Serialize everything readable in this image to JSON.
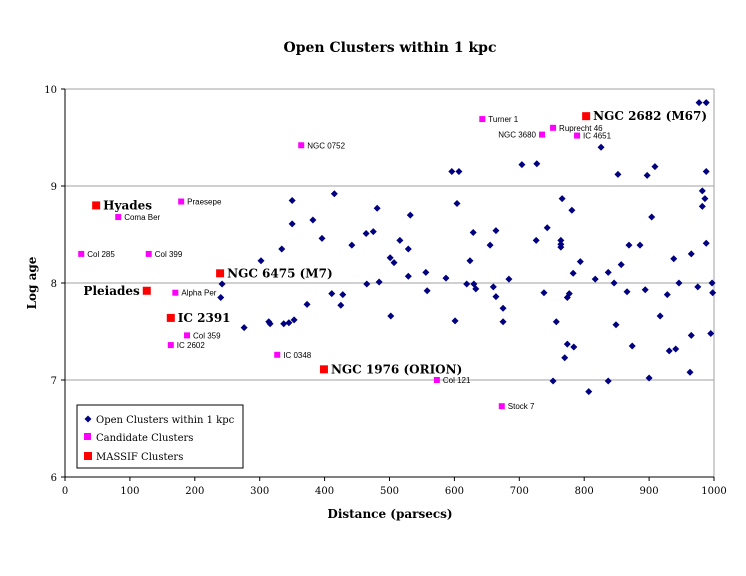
{
  "chart_data": {
    "type": "scatter",
    "title": "Open Clusters within 1 kpc",
    "xlabel": "Distance (parsecs)",
    "ylabel": "Log age",
    "xlim": [
      0,
      1000
    ],
    "ylim": [
      6,
      10
    ],
    "xticks": [
      "0",
      "100",
      "200",
      "300",
      "400",
      "500",
      "600",
      "700",
      "800",
      "900",
      "1000"
    ],
    "yticks": [
      "6",
      "7",
      "8",
      "9",
      "10"
    ],
    "grid": "horizontal",
    "legend_position": "bottom-left",
    "colors": {
      "open": "#000080",
      "candidate": "#ff00ff",
      "massif": "#ff0000",
      "grid": "#a0a0a0"
    },
    "series": [
      {
        "name": "Open Clusters within 1 kpc",
        "marker": "diamond",
        "points": [
          [
            350,
            8.85
          ],
          [
            415,
            8.92
          ],
          [
            481,
            8.77
          ],
          [
            350,
            8.61
          ],
          [
            382,
            8.65
          ],
          [
            396,
            8.46
          ],
          [
            442,
            8.39
          ],
          [
            464,
            8.51
          ],
          [
            475,
            8.53
          ],
          [
            334,
            8.35
          ],
          [
            302,
            8.23
          ],
          [
            501,
            8.26
          ],
          [
            507,
            8.21
          ],
          [
            242,
            7.99
          ],
          [
            240,
            7.85
          ],
          [
            465,
            7.99
          ],
          [
            484,
            8.01
          ],
          [
            411,
            7.89
          ],
          [
            428,
            7.88
          ],
          [
            425,
            7.77
          ],
          [
            373,
            7.78
          ],
          [
            502,
            7.66
          ],
          [
            276,
            7.54
          ],
          [
            314,
            7.6
          ],
          [
            316,
            7.58
          ],
          [
            337,
            7.58
          ],
          [
            345,
            7.59
          ],
          [
            353,
            7.62
          ],
          [
            604,
            8.82
          ],
          [
            532,
            8.7
          ],
          [
            516,
            8.44
          ],
          [
            529,
            8.35
          ],
          [
            629,
            8.52
          ],
          [
            664,
            8.54
          ],
          [
            655,
            8.39
          ],
          [
            624,
            8.23
          ],
          [
            556,
            8.11
          ],
          [
            529,
            8.07
          ],
          [
            587,
            8.05
          ],
          [
            619,
            7.99
          ],
          [
            630,
            7.99
          ],
          [
            633,
            7.94
          ],
          [
            660,
            7.96
          ],
          [
            664,
            7.86
          ],
          [
            675,
            7.74
          ],
          [
            675,
            7.6
          ],
          [
            684,
            8.04
          ],
          [
            558,
            7.92
          ],
          [
            601,
            7.61
          ],
          [
            726,
            8.44
          ],
          [
            743,
            8.57
          ],
          [
            738,
            7.9
          ],
          [
            757,
            7.6
          ],
          [
            977,
            9.86
          ],
          [
            988,
            9.86
          ],
          [
            826,
            9.4
          ],
          [
            596,
            9.15
          ],
          [
            607,
            9.15
          ],
          [
            704,
            9.22
          ],
          [
            727,
            9.23
          ],
          [
            852,
            9.12
          ],
          [
            897,
            9.11
          ],
          [
            909,
            9.2
          ],
          [
            988,
            9.15
          ],
          [
            766,
            8.87
          ],
          [
            781,
            8.75
          ],
          [
            982,
            8.95
          ],
          [
            986,
            8.87
          ],
          [
            982,
            8.79
          ],
          [
            904,
            8.68
          ],
          [
            764,
            8.44
          ],
          [
            764,
            8.4
          ],
          [
            764,
            8.37
          ],
          [
            869,
            8.39
          ],
          [
            886,
            8.39
          ],
          [
            988,
            8.41
          ],
          [
            794,
            8.22
          ],
          [
            857,
            8.19
          ],
          [
            938,
            8.25
          ],
          [
            965,
            8.3
          ],
          [
            783,
            8.1
          ],
          [
            837,
            8.11
          ],
          [
            817,
            8.04
          ],
          [
            846,
            8.0
          ],
          [
            946,
            8.0
          ],
          [
            975,
            7.96
          ],
          [
            997,
            8.0
          ],
          [
            998,
            7.9
          ],
          [
            774,
            7.85
          ],
          [
            777,
            7.89
          ],
          [
            866,
            7.91
          ],
          [
            894,
            7.93
          ],
          [
            928,
            7.88
          ],
          [
            774,
            7.37
          ],
          [
            784,
            7.34
          ],
          [
            770,
            7.23
          ],
          [
            849,
            7.57
          ],
          [
            917,
            7.66
          ],
          [
            874,
            7.35
          ],
          [
            931,
            7.3
          ],
          [
            941,
            7.32
          ],
          [
            965,
            7.46
          ],
          [
            995,
            7.48
          ],
          [
            752,
            6.99
          ],
          [
            837,
            6.99
          ],
          [
            900,
            7.02
          ],
          [
            963,
            7.08
          ],
          [
            807,
            6.88
          ]
        ]
      },
      {
        "name": "Candidate Clusters",
        "marker": "square",
        "points": [
          {
            "label": "Praesepe",
            "x": 179,
            "y": 8.84
          },
          {
            "label": "Coma Ber",
            "x": 82,
            "y": 8.68
          },
          {
            "label": "Col 285",
            "x": 25,
            "y": 8.3
          },
          {
            "label": "Col 399",
            "x": 129,
            "y": 8.3
          },
          {
            "label": "Alpha Per",
            "x": 170,
            "y": 7.9
          },
          {
            "label": "Col 359",
            "x": 188,
            "y": 7.46
          },
          {
            "label": "IC 2602",
            "x": 163,
            "y": 7.36
          },
          {
            "label": "IC 0348",
            "x": 327,
            "y": 7.26
          },
          {
            "label": "Col 121",
            "x": 573,
            "y": 7.0
          },
          {
            "label": "Stock 7",
            "x": 673,
            "y": 6.73
          },
          {
            "label": "NGC 0752",
            "x": 364,
            "y": 9.42
          },
          {
            "label": "Turner 1",
            "x": 643,
            "y": 9.69
          },
          {
            "label": "Ruprecht 46",
            "x": 752,
            "y": 9.6
          },
          {
            "label": "NGC 3680",
            "x": 735,
            "y": 9.53,
            "label_side": "left"
          },
          {
            "label": "IC 4651",
            "x": 789,
            "y": 9.52
          }
        ]
      },
      {
        "name": "MASSIF Clusters",
        "marker": "square",
        "points": [
          {
            "label": "Hyades",
            "x": 48,
            "y": 8.8
          },
          {
            "label": "NGC 6475 (M7)",
            "x": 239,
            "y": 8.1
          },
          {
            "label": "Pleiades",
            "x": 126,
            "y": 7.92,
            "label_side": "left"
          },
          {
            "label": "IC 2391",
            "x": 163,
            "y": 7.64
          },
          {
            "label": "NGC 1976 (ORION)",
            "x": 399,
            "y": 7.11
          },
          {
            "label": "NGC 2682 (M67)",
            "x": 803,
            "y": 9.72
          }
        ]
      }
    ]
  }
}
